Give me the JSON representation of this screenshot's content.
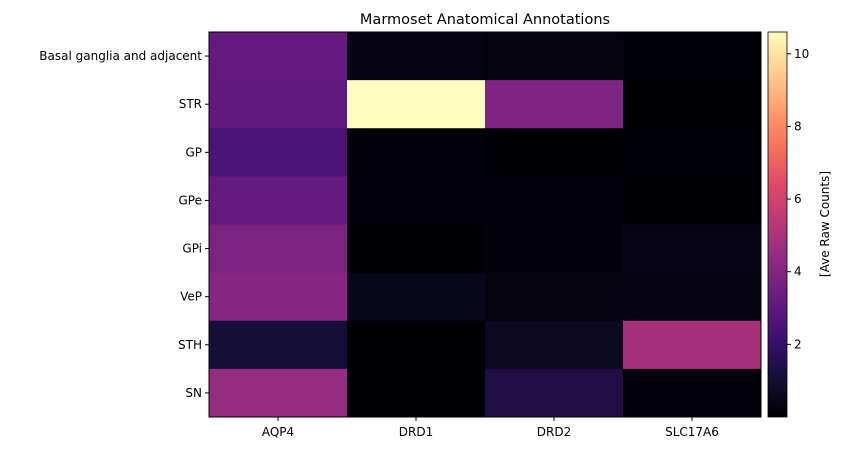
{
  "chart_data": {
    "type": "heatmap",
    "title": "Marmoset Anatomical Annotations",
    "xlabel": "",
    "ylabel": "",
    "colorbar_label": "[Ave Raw Counts]",
    "colormap": "magma",
    "vmin": 0.0,
    "vmax": 10.6,
    "colorbar_ticks": [
      2,
      4,
      6,
      8,
      10
    ],
    "columns": [
      "AQP4",
      "DRD1",
      "DRD2",
      "SLC17A6"
    ],
    "rows": [
      "Basal ganglia and adjacent",
      "STR",
      "GP",
      "GPe",
      "GPi",
      "VeP",
      "STH",
      "SN"
    ],
    "values": [
      [
        3.2,
        0.3,
        0.2,
        0.1
      ],
      [
        3.1,
        10.6,
        3.9,
        0.05
      ],
      [
        2.5,
        0.15,
        0.02,
        0.1
      ],
      [
        3.2,
        0.15,
        0.15,
        0.02
      ],
      [
        3.8,
        0.02,
        0.15,
        0.35
      ],
      [
        4.1,
        0.45,
        0.25,
        0.3
      ],
      [
        1.1,
        0.02,
        0.6,
        4.9
      ],
      [
        4.45,
        0.02,
        1.3,
        0.15
      ]
    ]
  }
}
